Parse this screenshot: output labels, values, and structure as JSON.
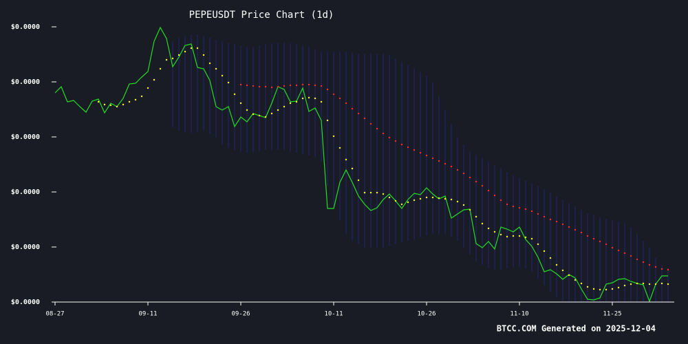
{
  "chart_data": {
    "type": "line",
    "title": "PEPEUSDT Price Chart (1d)",
    "annotation": "BTCC.COM Generated on 2025-12-04",
    "categories": [
      "08-27",
      null,
      null,
      null,
      null,
      null,
      null,
      null,
      null,
      null,
      null,
      null,
      null,
      null,
      null,
      "09-11",
      null,
      null,
      null,
      null,
      null,
      null,
      null,
      null,
      null,
      null,
      null,
      null,
      null,
      null,
      "09-26",
      null,
      null,
      null,
      null,
      null,
      null,
      null,
      null,
      null,
      null,
      null,
      null,
      null,
      null,
      "10-11",
      null,
      null,
      null,
      null,
      null,
      null,
      null,
      null,
      null,
      null,
      null,
      null,
      null,
      null,
      "10-26",
      null,
      null,
      null,
      null,
      null,
      null,
      null,
      null,
      null,
      null,
      null,
      null,
      null,
      null,
      "11-10",
      null,
      null,
      null,
      null,
      null,
      null,
      null,
      null,
      null,
      null,
      null,
      null,
      null,
      null,
      "11-25",
      null,
      null,
      null,
      null,
      null,
      null,
      null,
      null,
      null
    ],
    "ylim": [
      4e-06,
      8e-06
    ],
    "yticks": [
      {
        "value": 4e-06,
        "label": "$0.0000"
      },
      {
        "value": 4.8e-06,
        "label": "$0.0000"
      },
      {
        "value": 5.6e-06,
        "label": "$0.0000"
      },
      {
        "value": 6.4e-06,
        "label": "$0.0000"
      },
      {
        "value": 7.2e-06,
        "label": "$0.0000"
      },
      {
        "value": 8e-06,
        "label": "$0.0000"
      }
    ],
    "grid": false,
    "series": [
      {
        "style": "band",
        "color": "#25257e",
        "upper": [
          null,
          null,
          null,
          null,
          null,
          null,
          null,
          null,
          null,
          null,
          null,
          null,
          null,
          null,
          null,
          null,
          null,
          null,
          null,
          7.79e-06,
          7.84e-06,
          7.87e-06,
          7.89e-06,
          7.89e-06,
          7.87e-06,
          7.84e-06,
          7.81e-06,
          7.79e-06,
          7.77e-06,
          7.75e-06,
          7.73e-06,
          7.71e-06,
          7.71e-06,
          7.73e-06,
          7.75e-06,
          7.76e-06,
          7.77e-06,
          7.77e-06,
          7.76e-06,
          7.75e-06,
          7.73e-06,
          7.71e-06,
          7.67e-06,
          7.64e-06,
          7.64e-06,
          7.64e-06,
          7.64e-06,
          7.64e-06,
          7.62e-06,
          7.61e-06,
          7.61e-06,
          7.61e-06,
          7.61e-06,
          7.61e-06,
          7.59e-06,
          7.54e-06,
          7.49e-06,
          7.44e-06,
          7.39e-06,
          7.34e-06,
          7.29e-06,
          7.19e-06,
          6.99e-06,
          6.79e-06,
          6.59e-06,
          6.39e-06,
          6.29e-06,
          6.19e-06,
          6.14e-06,
          6.09e-06,
          6.04e-06,
          5.99e-06,
          5.94e-06,
          5.89e-06,
          5.84e-06,
          5.81e-06,
          5.77e-06,
          5.73e-06,
          5.69e-06,
          5.64e-06,
          5.59e-06,
          5.54e-06,
          5.49e-06,
          5.44e-06,
          5.39e-06,
          5.34e-06,
          5.29e-06,
          5.27e-06,
          5.24e-06,
          5.21e-06,
          5.19e-06,
          5.17e-06,
          5.14e-06,
          5.09e-06,
          4.99e-06,
          4.89e-06,
          4.79e-06,
          4.64e-06,
          4.54e-06,
          4.49e-06
        ],
        "lower": [
          null,
          null,
          null,
          null,
          null,
          null,
          null,
          null,
          null,
          null,
          null,
          null,
          null,
          null,
          null,
          null,
          null,
          null,
          null,
          6.54e-06,
          6.49e-06,
          6.47e-06,
          6.46e-06,
          6.47e-06,
          6.49e-06,
          6.44e-06,
          6.39e-06,
          6.29e-06,
          6.24e-06,
          6.21e-06,
          6.19e-06,
          6.17e-06,
          6.17e-06,
          6.19e-06,
          6.21e-06,
          6.21e-06,
          6.21e-06,
          6.21e-06,
          6.19e-06,
          6.17e-06,
          6.15e-06,
          6.13e-06,
          6.11e-06,
          6.04e-06,
          5.69e-06,
          5.39e-06,
          5.19e-06,
          4.99e-06,
          4.89e-06,
          4.84e-06,
          4.79e-06,
          4.79e-06,
          4.79e-06,
          4.79e-06,
          4.81e-06,
          4.84e-06,
          4.87e-06,
          4.89e-06,
          4.91e-06,
          4.94e-06,
          4.97e-06,
          4.99e-06,
          4.99e-06,
          4.99e-06,
          4.94e-06,
          4.89e-06,
          4.79e-06,
          4.69e-06,
          4.59e-06,
          4.54e-06,
          4.49e-06,
          4.47e-06,
          4.47e-06,
          4.49e-06,
          4.51e-06,
          4.51e-06,
          4.49e-06,
          4.44e-06,
          4.34e-06,
          4.24e-06,
          4.14e-06,
          4.07e-06,
          4.01e-06,
          3.99e-06,
          3.97e-06,
          3.94e-06,
          3.91e-06,
          3.89e-06,
          3.87e-06,
          3.87e-06,
          3.89e-06,
          3.91e-06,
          3.93e-06,
          3.94e-06,
          3.99e-06,
          3.99e-06,
          3.97e-06,
          3.95e-06,
          3.94e-06,
          3.94e-06
        ]
      },
      {
        "style": "line",
        "color": "#22e022",
        "values": [
          7.04e-06,
          7.13e-06,
          6.91e-06,
          6.93e-06,
          6.84e-06,
          6.76e-06,
          6.92e-06,
          6.95e-06,
          6.75e-06,
          6.89e-06,
          6.84e-06,
          6.96e-06,
          7.17e-06,
          7.18e-06,
          7.27e-06,
          7.35e-06,
          7.79e-06,
          7.99e-06,
          7.83e-06,
          7.42e-06,
          7.56e-06,
          7.73e-06,
          7.75e-06,
          7.41e-06,
          7.39e-06,
          7.22e-06,
          6.84e-06,
          6.79e-06,
          6.84e-06,
          6.55e-06,
          6.69e-06,
          6.62e-06,
          6.74e-06,
          6.71e-06,
          6.68e-06,
          6.89e-06,
          7.13e-06,
          7.09e-06,
          6.91e-06,
          6.92e-06,
          7.11e-06,
          6.77e-06,
          6.82e-06,
          6.64e-06,
          5.36e-06,
          5.36e-06,
          5.74e-06,
          5.92e-06,
          5.74e-06,
          5.54e-06,
          5.42e-06,
          5.33e-06,
          5.37e-06,
          5.49e-06,
          5.57e-06,
          5.47e-06,
          5.36e-06,
          5.49e-06,
          5.58e-06,
          5.56e-06,
          5.66e-06,
          5.57e-06,
          5.5e-06,
          5.54e-06,
          5.22e-06,
          5.28e-06,
          5.34e-06,
          5.35e-06,
          4.85e-06,
          4.79e-06,
          4.88e-06,
          4.77e-06,
          5.09e-06,
          5.06e-06,
          5.02e-06,
          5.09e-06,
          4.91e-06,
          4.81e-06,
          4.65e-06,
          4.44e-06,
          4.47e-06,
          4.41e-06,
          4.33e-06,
          4.4e-06,
          4.35e-06,
          4.19e-06,
          4.04e-06,
          4.03e-06,
          4.06e-06,
          4.26e-06,
          4.28e-06,
          4.33e-06,
          4.34e-06,
          4.3e-06,
          4.27e-06,
          4.25e-06,
          4.01e-06,
          4.26e-06,
          4.38e-06,
          4.38e-06
        ]
      },
      {
        "style": "dots",
        "color": "#ffff00",
        "values": [
          null,
          null,
          null,
          null,
          null,
          null,
          null,
          6.91e-06,
          6.87e-06,
          6.86e-06,
          6.84e-06,
          6.87e-06,
          6.91e-06,
          6.94e-06,
          6.99e-06,
          7.11e-06,
          7.23e-06,
          7.39e-06,
          7.52e-06,
          7.54e-06,
          7.59e-06,
          7.64e-06,
          7.69e-06,
          7.69e-06,
          7.59e-06,
          7.47e-06,
          7.39e-06,
          7.29e-06,
          7.19e-06,
          7.02e-06,
          6.89e-06,
          6.79e-06,
          6.73e-06,
          6.71e-06,
          6.69e-06,
          6.74e-06,
          6.79e-06,
          6.84e-06,
          6.89e-06,
          6.91e-06,
          6.96e-06,
          6.97e-06,
          6.96e-06,
          6.91e-06,
          6.64e-06,
          6.41e-06,
          6.24e-06,
          6.07e-06,
          5.94e-06,
          5.77e-06,
          5.59e-06,
          5.59e-06,
          5.59e-06,
          5.57e-06,
          5.52e-06,
          5.47e-06,
          5.42e-06,
          5.45e-06,
          5.48e-06,
          5.5e-06,
          5.52e-06,
          5.52e-06,
          5.51e-06,
          5.5e-06,
          5.49e-06,
          5.46e-06,
          5.41e-06,
          5.34e-06,
          5.24e-06,
          5.14e-06,
          5.07e-06,
          5.02e-06,
          4.98e-06,
          4.95e-06,
          4.96e-06,
          4.96e-06,
          4.94e-06,
          4.92e-06,
          4.84e-06,
          4.74e-06,
          4.64e-06,
          4.54e-06,
          4.46e-06,
          4.39e-06,
          4.32e-06,
          4.27e-06,
          4.22e-06,
          4.19e-06,
          4.18e-06,
          4.18e-06,
          4.19e-06,
          4.21e-06,
          4.24e-06,
          4.26e-06,
          4.27e-06,
          4.27e-06,
          4.26e-06,
          4.26e-06,
          4.27e-06,
          4.26e-06
        ]
      },
      {
        "style": "dots",
        "color": "#ff2a2a",
        "values": [
          null,
          null,
          null,
          null,
          null,
          null,
          null,
          null,
          null,
          null,
          null,
          null,
          null,
          null,
          null,
          null,
          null,
          null,
          null,
          null,
          null,
          null,
          null,
          null,
          null,
          null,
          null,
          null,
          null,
          null,
          7.16e-06,
          7.15e-06,
          7.14e-06,
          7.13e-06,
          7.13e-06,
          7.12e-06,
          7.13e-06,
          7.14e-06,
          7.15e-06,
          7.15e-06,
          7.16e-06,
          7.16e-06,
          7.15e-06,
          7.14e-06,
          7.09e-06,
          7.02e-06,
          6.96e-06,
          6.89e-06,
          6.81e-06,
          6.74e-06,
          6.67e-06,
          6.59e-06,
          6.52e-06,
          6.45e-06,
          6.39e-06,
          6.34e-06,
          6.29e-06,
          6.25e-06,
          6.21e-06,
          6.17e-06,
          6.13e-06,
          6.09e-06,
          6.05e-06,
          6.01e-06,
          5.97e-06,
          5.92e-06,
          5.87e-06,
          5.81e-06,
          5.75e-06,
          5.69e-06,
          5.62e-06,
          5.55e-06,
          5.48e-06,
          5.42e-06,
          5.39e-06,
          5.37e-06,
          5.35e-06,
          5.32e-06,
          5.28e-06,
          5.24e-06,
          5.2e-06,
          5.17e-06,
          5.13e-06,
          5.09e-06,
          5.05e-06,
          5.01e-06,
          4.96e-06,
          4.92e-06,
          4.88e-06,
          4.84e-06,
          4.79e-06,
          4.75e-06,
          4.71e-06,
          4.67e-06,
          4.62e-06,
          4.58e-06,
          4.54e-06,
          4.51e-06,
          4.48e-06,
          4.47e-06
        ]
      }
    ]
  }
}
